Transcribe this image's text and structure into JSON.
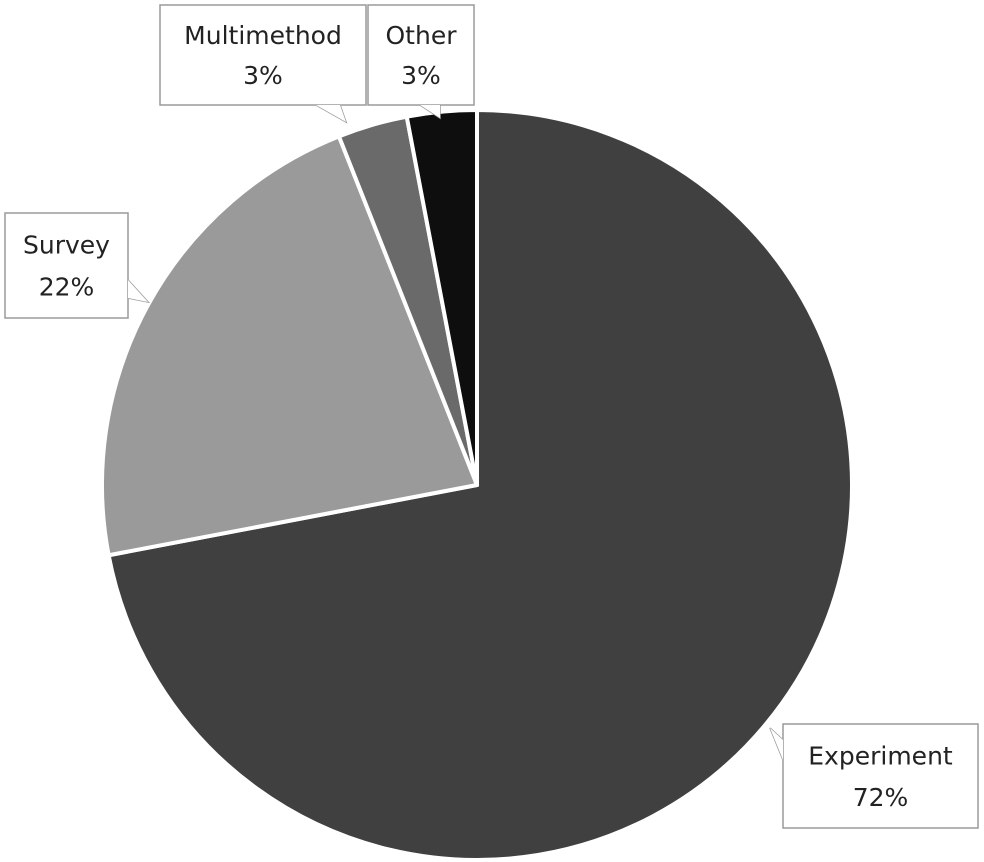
{
  "chart_data": {
    "type": "pie",
    "categories": [
      "Experiment",
      "Survey",
      "Multimethod",
      "Other"
    ],
    "values": [
      72,
      22,
      3,
      3
    ],
    "value_labels": [
      "72%",
      "22%",
      "3%",
      "3%"
    ],
    "colors": [
      "#404040",
      "#9a9a9a",
      "#6a6a6a",
      "#0e0e0e"
    ]
  }
}
